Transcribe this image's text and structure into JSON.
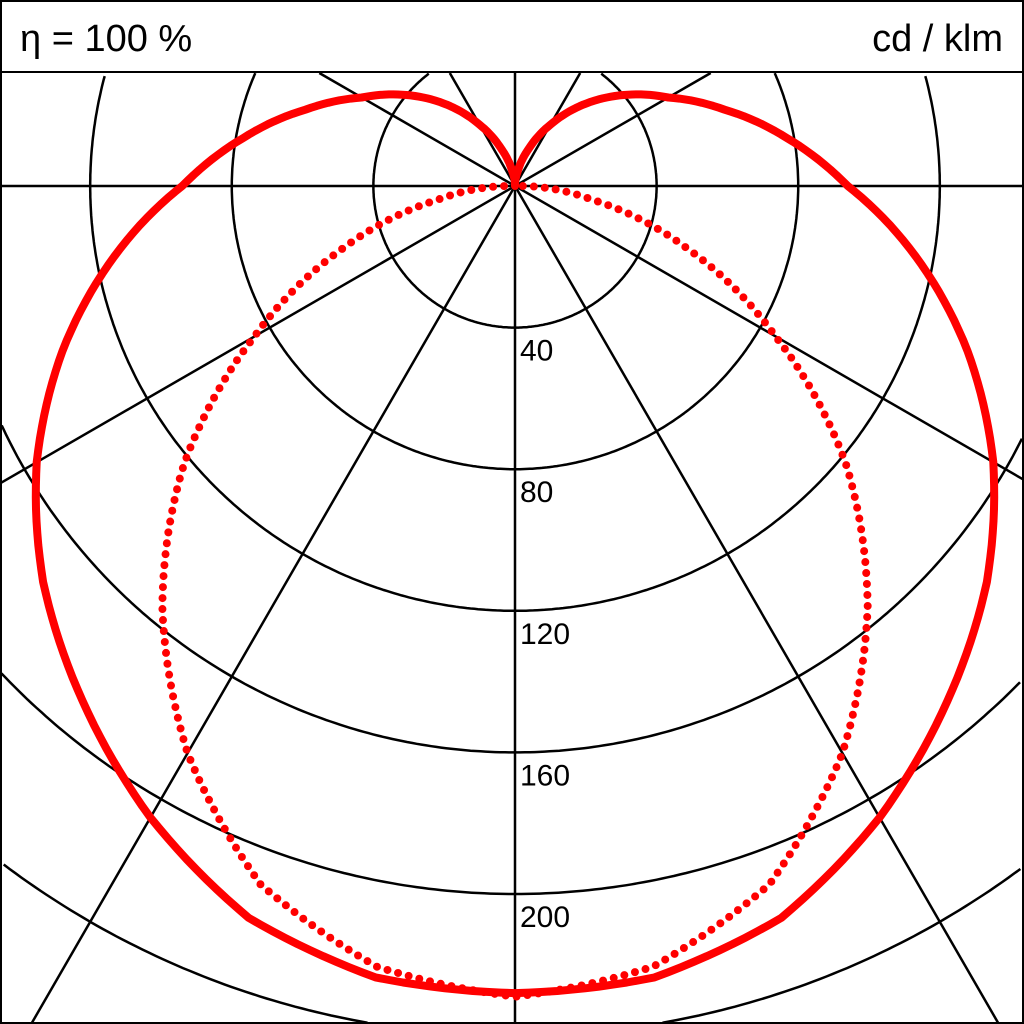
{
  "header": {
    "efficiency_label": "η = 100 %",
    "unit_label": "cd / klm"
  },
  "chart_data": {
    "type": "polar",
    "title": "",
    "unit": "cd / klm",
    "efficiency": "η = 100 %",
    "radial_ticks": [
      40,
      80,
      120,
      160,
      200
    ],
    "radial_tick_labels": [
      "40",
      "80",
      "120",
      "160",
      "200"
    ],
    "radial_step": 40,
    "angle_grid_step_deg": 30,
    "grid": true,
    "angles_deg": [
      0,
      10,
      20,
      30,
      40,
      50,
      60,
      70,
      80,
      90,
      100,
      110,
      120,
      130,
      140,
      150,
      160,
      170,
      180
    ],
    "series": [
      {
        "style": "solid",
        "color": "#ff0000",
        "values": [
          228,
          227,
          220,
          206,
          190,
          174,
          156,
          136,
          115,
          94,
          78,
          63,
          50,
          40,
          30,
          20,
          11,
          4,
          0
        ]
      },
      {
        "style": "dotted",
        "color": "#ff0000",
        "values": [
          229,
          224,
          210,
          185,
          155,
          122,
          85,
          52,
          22,
          2,
          0,
          0,
          0,
          0,
          0,
          0,
          0,
          0,
          0
        ]
      }
    ]
  }
}
